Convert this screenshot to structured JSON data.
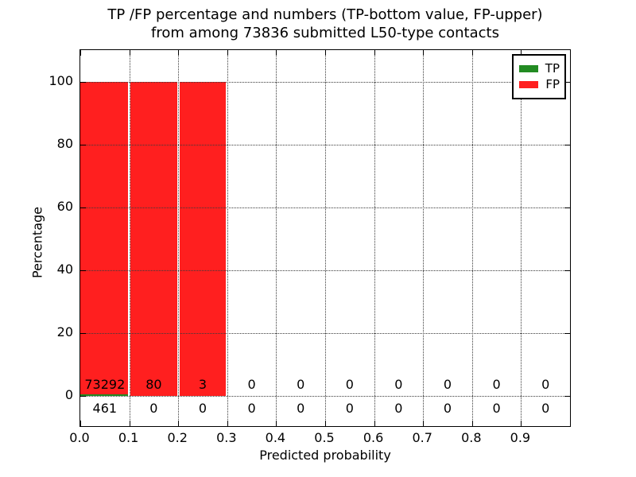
{
  "chart_data": {
    "type": "bar",
    "stacked": true,
    "title_line1": "TP /FP percentage and numbers (TP-bottom value, FP-upper)",
    "title_line2": "from among 73836 submitted L50-type contacts",
    "xlabel": "Predicted probability",
    "ylabel": "Percentage",
    "xlim": [
      0.0,
      1.0
    ],
    "ylim": [
      -10,
      110
    ],
    "xticks": [
      "0.0",
      "0.1",
      "0.2",
      "0.3",
      "0.4",
      "0.5",
      "0.6",
      "0.7",
      "0.8",
      "0.9"
    ],
    "yticks": [
      0,
      20,
      40,
      60,
      80,
      100
    ],
    "grid": "dotted",
    "bin_width": 0.1,
    "bin_starts": [
      0.0,
      0.1,
      0.2,
      0.3,
      0.4,
      0.5,
      0.6,
      0.7,
      0.8,
      0.9
    ],
    "series": [
      {
        "name": "TP",
        "color": "#228b22",
        "counts": [
          461,
          0,
          0,
          0,
          0,
          0,
          0,
          0,
          0,
          0
        ],
        "pct": [
          0.63,
          0,
          0,
          0,
          0,
          0,
          0,
          0,
          0,
          0
        ]
      },
      {
        "name": "FP",
        "color": "#ff1f1f",
        "counts": [
          73292,
          80,
          3,
          0,
          0,
          0,
          0,
          0,
          0,
          0
        ],
        "pct": [
          99.37,
          100,
          100,
          0,
          0,
          0,
          0,
          0,
          0,
          0
        ]
      }
    ],
    "legend_position": "upper right",
    "total_submitted": 73836
  }
}
